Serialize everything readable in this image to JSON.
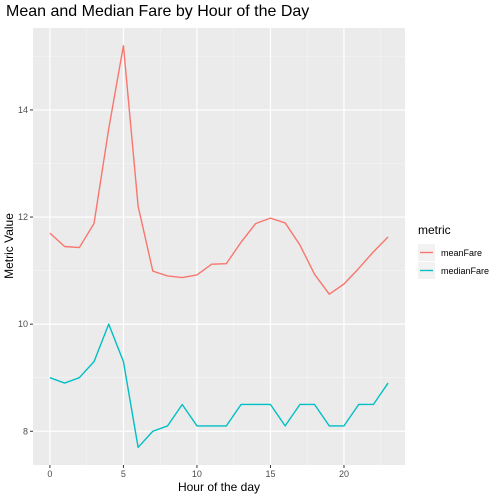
{
  "chart_data": {
    "type": "line",
    "title": "Mean and Median Fare by Hour of the Day",
    "xlabel": "Hour of the day",
    "ylabel": "Metric Value",
    "xlim": [
      -1.15,
      24.15
    ],
    "ylim": [
      7.37,
      15.53
    ],
    "x_ticks": [
      0,
      5,
      10,
      15,
      20
    ],
    "y_ticks": [
      8,
      10,
      12,
      14
    ],
    "grid": true,
    "legend": {
      "title": "metric",
      "position": "right"
    },
    "x": [
      0,
      1,
      2,
      3,
      4,
      5,
      6,
      7,
      8,
      9,
      10,
      11,
      12,
      13,
      14,
      15,
      16,
      17,
      18,
      19,
      20,
      21,
      22,
      23
    ],
    "series": [
      {
        "name": "meanFare",
        "color": "#f8766d",
        "values": [
          11.7,
          11.45,
          11.43,
          11.88,
          13.65,
          15.2,
          12.2,
          10.99,
          10.9,
          10.87,
          10.92,
          11.12,
          11.13,
          11.53,
          11.88,
          11.98,
          11.89,
          11.48,
          10.93,
          10.56,
          10.75,
          11.04,
          11.35,
          11.63
        ]
      },
      {
        "name": "medianFare",
        "color": "#00bfc4",
        "values": [
          9.0,
          8.9,
          9.0,
          9.3,
          10.0,
          9.3,
          7.7,
          8.0,
          8.1,
          8.5,
          8.1,
          8.1,
          8.1,
          8.5,
          8.5,
          8.5,
          8.1,
          8.5,
          8.5,
          8.1,
          8.1,
          8.5,
          8.5,
          8.9
        ]
      }
    ]
  }
}
